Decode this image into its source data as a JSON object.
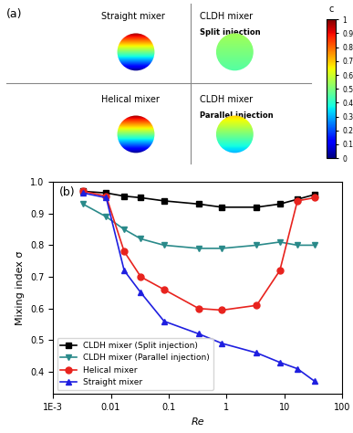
{
  "chart_data": [
    {
      "type": "diagram",
      "title": "(a)",
      "panels": [
        {
          "title": "Straight mixer"
        },
        {
          "title": "Helical mixer"
        },
        {
          "title": "CLDH mixer",
          "subtitle": "Split injection"
        },
        {
          "title": "CLDH mixer",
          "subtitle": "Parallel injection"
        }
      ],
      "colorbar": {
        "label": "c",
        "lim": [
          0,
          1
        ],
        "ticks": [
          0,
          0.1,
          0.2,
          0.3,
          0.4,
          0.5,
          0.6,
          0.7,
          0.8,
          0.9,
          1
        ]
      }
    },
    {
      "type": "line",
      "title": "(b)",
      "x_label": "Re",
      "y_label": "Mixing index σ",
      "log": "x",
      "xlim": [
        0.001,
        100
      ],
      "xticks": [
        {
          "value": 0.001,
          "label": "1E-3"
        },
        0.01,
        0.1,
        1,
        10,
        100
      ],
      "ylim": [
        0.33,
        1.0
      ],
      "yticks": [
        0.4,
        0.5,
        0.6,
        0.7,
        0.8,
        0.9,
        1.0
      ],
      "legend": "lower left",
      "x": [
        0.0033,
        0.0083,
        0.017,
        0.033,
        0.083,
        0.33,
        0.83,
        3.3,
        8.3,
        16.7,
        33.3
      ],
      "series": [
        {
          "name": "CLDH mixer (Split injection)",
          "color": "#000000",
          "marker": "s",
          "line_style": "solid",
          "values": [
            0.97,
            0.965,
            0.955,
            0.95,
            0.94,
            0.93,
            0.92,
            0.92,
            0.93,
            0.945,
            0.96
          ]
        },
        {
          "name": "CLDH mixer (Parallel injection)",
          "color": "#2a8a8a",
          "marker": "v",
          "line_style": "solid",
          "values": [
            0.93,
            0.89,
            0.85,
            0.82,
            0.8,
            0.79,
            0.79,
            0.8,
            0.81,
            0.8,
            0.8
          ]
        },
        {
          "name": "Helical mixer",
          "color": "#e8231e",
          "marker": "o",
          "line_style": "solid",
          "values": [
            0.97,
            0.955,
            0.78,
            0.7,
            0.66,
            0.6,
            0.595,
            0.61,
            0.72,
            0.94,
            0.95
          ]
        },
        {
          "name": "Straight mixer",
          "color": "#1f1fe0",
          "marker": "^",
          "line_style": "solid",
          "values": [
            0.965,
            0.95,
            0.72,
            0.65,
            0.56,
            0.52,
            0.49,
            0.46,
            0.43,
            0.41,
            0.37
          ]
        }
      ]
    }
  ]
}
